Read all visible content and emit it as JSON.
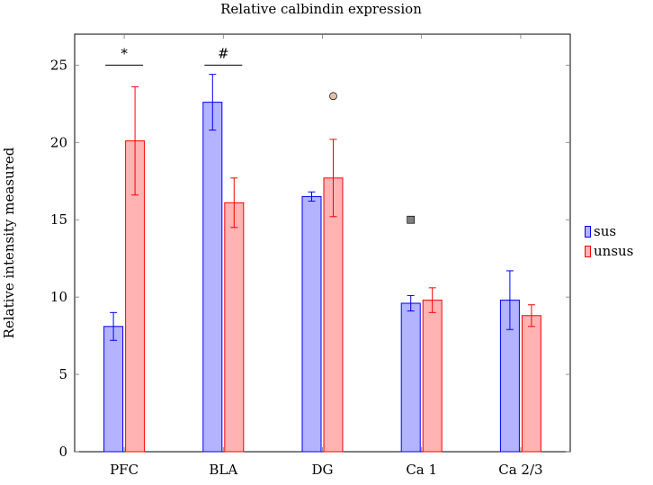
{
  "chart_data": {
    "type": "bar",
    "title": "Relative calbindin expression",
    "xlabel": "",
    "ylabel": "Relative intensity measured",
    "categories": [
      "PFC",
      "BLA",
      "DG",
      "Ca 1",
      "Ca 2/3"
    ],
    "ylim": [
      0,
      27
    ],
    "yticks": [
      0,
      5,
      10,
      15,
      20,
      25
    ],
    "ytick_labels": [
      "0",
      "5",
      "10",
      "15",
      "20",
      "25"
    ],
    "grid": false,
    "legend_position": "right",
    "series": [
      {
        "name": "sus",
        "values": [
          8.1,
          22.6,
          16.5,
          9.6,
          9.8
        ],
        "error_low": [
          7.2,
          20.8,
          16.2,
          9.1,
          7.9
        ],
        "error_high": [
          9.0,
          24.4,
          16.8,
          10.1,
          11.7
        ],
        "fill": "#b3b3ff",
        "stroke": "#0000ff"
      },
      {
        "name": "unsus",
        "values": [
          20.1,
          16.1,
          17.7,
          9.8,
          8.8
        ],
        "error_low": [
          16.6,
          14.5,
          15.2,
          9.0,
          8.1
        ],
        "error_high": [
          23.6,
          17.7,
          20.2,
          10.6,
          9.5
        ],
        "fill": "#ffb3b3",
        "stroke": "#ff0000"
      }
    ],
    "significance": [
      {
        "category": "PFC",
        "symbol": "*",
        "y": 25
      },
      {
        "category": "BLA",
        "symbol": "#",
        "y": 25
      }
    ],
    "markers": [
      {
        "category": "DG",
        "series": "unsus",
        "y": 23,
        "shape": "circle",
        "fill": "#e6bfa6"
      },
      {
        "category": "Ca 1",
        "series": "sus",
        "y": 15,
        "shape": "square",
        "fill": "#808080"
      }
    ]
  }
}
